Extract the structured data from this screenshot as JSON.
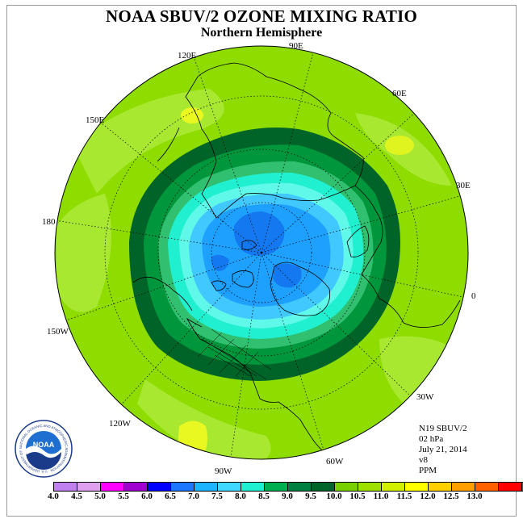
{
  "title": "NOAA SBUV/2 OZONE MIXING RATIO",
  "subtitle": "Northern Hemisphere",
  "longitudes": [
    "90E",
    "60E",
    "30E",
    "0",
    "30W",
    "60W",
    "90W",
    "120W",
    "150W",
    "180",
    "150E",
    "120E"
  ],
  "info": {
    "satellite": "N19 SBUV/2",
    "level": "02 hPa",
    "date": "July 21, 2014",
    "version": "v8",
    "units": "PPM"
  },
  "logo_text": "NOAA",
  "logo_ring_text": "NATIONAL OCEANIC AND ATMOSPHERIC ADMINISTRATION · U.S. DEPARTMENT OF COMMERCE",
  "legend": {
    "ticks": [
      "4.0",
      "4.5",
      "5.0",
      "5.5",
      "6.0",
      "6.5",
      "7.0",
      "7.5",
      "8.0",
      "8.5",
      "9.0",
      "9.5",
      "10.0",
      "10.5",
      "11.0",
      "11.5",
      "12.0",
      "12.5",
      "13.0"
    ],
    "colors": [
      "#c080f0",
      "#e0a0f0",
      "#ff00ff",
      "#a000d0",
      "#0000ff",
      "#1e78ff",
      "#1eb4ff",
      "#40d8ff",
      "#20f0d0",
      "#00b050",
      "#008040",
      "#006428",
      "#78d000",
      "#a0e000",
      "#d0f000",
      "#ffff00",
      "#ffd000",
      "#ffa000",
      "#ff6000",
      "#ff0000",
      "#8c5030"
    ]
  },
  "colors": {
    "outer": "#8edc00",
    "mid_light": "#a8e830",
    "yellow": "#e8f820",
    "ring_dark": "#006428",
    "ring_med": "#00a040",
    "ring_light": "#30c070",
    "cyan": "#20f0d0",
    "cyan_light": "#60f8e8",
    "blue_light": "#40c8ff",
    "blue_med": "#1ea0ff",
    "blue_dark": "#1478f0"
  }
}
